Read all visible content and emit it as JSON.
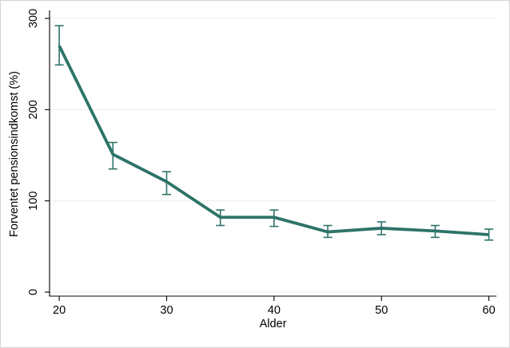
{
  "figure": {
    "background": "#ffffff",
    "border_color": "#d4d4d4"
  },
  "chart_data": {
    "type": "line",
    "title": "",
    "xlabel": "Alder",
    "ylabel": "Forventet pensionsindkomst (%)",
    "x": [
      20,
      25,
      30,
      35,
      40,
      45,
      50,
      55,
      60
    ],
    "series": [
      {
        "name": "Forventet pensionsindkomst",
        "values": [
          270,
          151,
          121,
          82,
          82,
          66,
          70,
          67,
          63
        ],
        "ci_low": [
          249,
          135,
          107,
          73,
          72,
          60,
          63,
          60,
          57
        ],
        "ci_high": [
          292,
          164,
          132,
          90,
          90,
          73,
          77,
          73,
          69
        ],
        "color": "#2d7368"
      }
    ],
    "error_bars": true,
    "xticks": [
      20,
      30,
      40,
      50,
      60
    ],
    "yticks": [
      0,
      100,
      200,
      300
    ],
    "xlim": [
      19.1,
      60.7
    ],
    "ylim": [
      -4.4,
      308.8
    ],
    "grid": "horizontal",
    "gridline_color": "#e9f1f4",
    "axis_color": "#000000",
    "legend": "none"
  }
}
